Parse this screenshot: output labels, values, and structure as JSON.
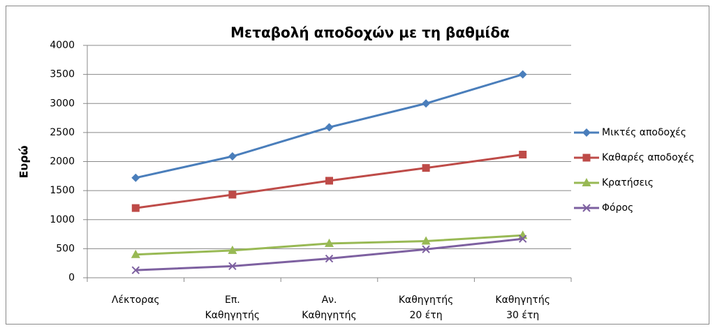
{
  "chart_data": {
    "type": "line",
    "title": "Μεταβολή αποδοχών με τη βαθμίδα",
    "y_label": "Ευρώ",
    "categories": [
      "Λέκτορας",
      "Επ. Καθηγητής",
      "Αν. Καθηγητής",
      "Καθηγητής 20 έτη",
      "Καθηγητής 30 έτη"
    ],
    "series": [
      {
        "name": "Μικτές αποδοχές",
        "color": "#4a7ebb",
        "marker": "diamond",
        "values": [
          1720,
          2090,
          2590,
          3000,
          3500
        ]
      },
      {
        "name": "Καθαρές αποδοχές",
        "color": "#be4b48",
        "marker": "square",
        "values": [
          1200,
          1430,
          1670,
          1890,
          2120
        ]
      },
      {
        "name": "Κρατήσεις",
        "color": "#98b954",
        "marker": "triangle",
        "values": [
          400,
          470,
          590,
          630,
          730
        ]
      },
      {
        "name": "Φόρος",
        "color": "#7d60a0",
        "marker": "x",
        "values": [
          130,
          200,
          330,
          490,
          670
        ]
      }
    ],
    "ylim": [
      0,
      4000
    ],
    "yticks": [
      0,
      500,
      1000,
      1500,
      2000,
      2500,
      3000,
      3500,
      4000
    ],
    "grid": true,
    "legend": "right"
  }
}
